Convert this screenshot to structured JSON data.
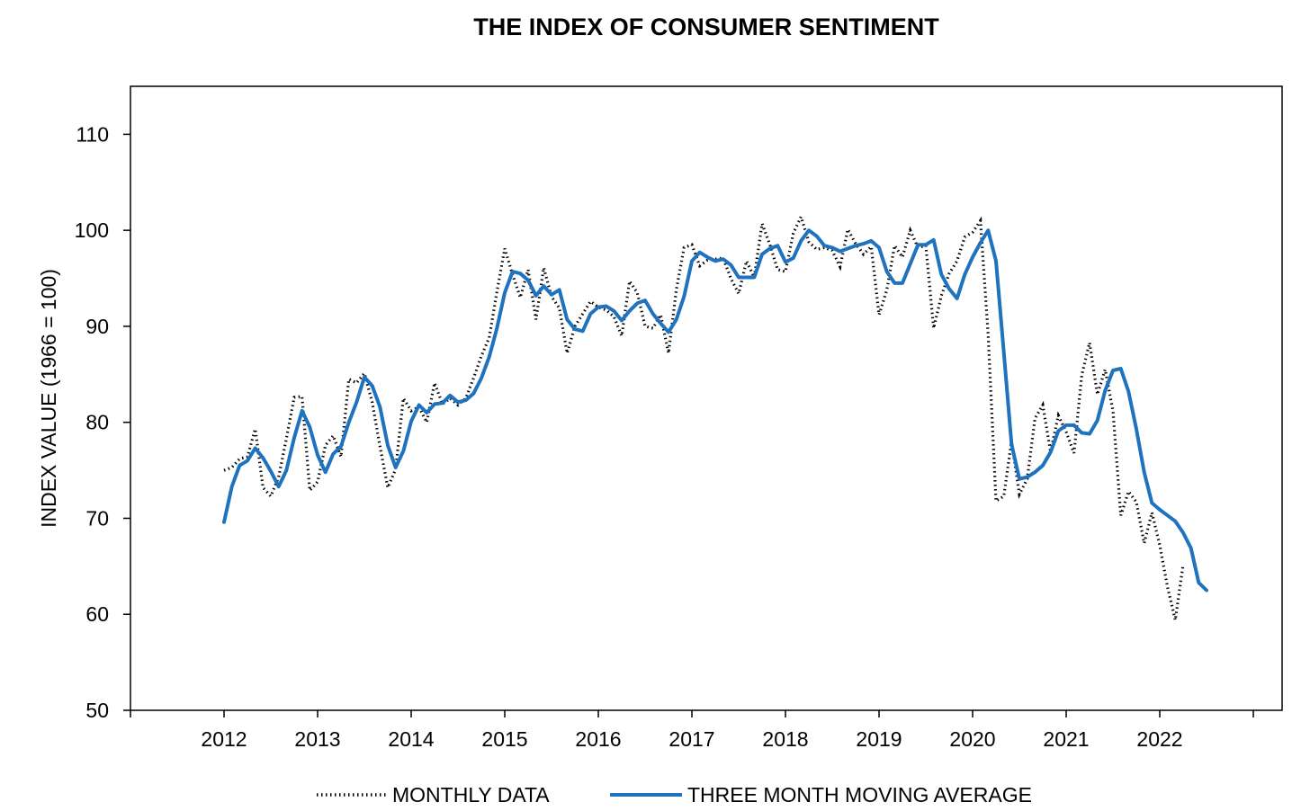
{
  "chart_data": {
    "type": "line",
    "title": "THE INDEX OF CONSUMER SENTIMENT",
    "xlabel": "",
    "ylabel": "INDEX VALUE (1966 = 100)",
    "ylim": [
      50,
      115
    ],
    "yticks": [
      50,
      60,
      70,
      80,
      90,
      100,
      110
    ],
    "xticks": [
      "2012",
      "2013",
      "2014",
      "2015",
      "2016",
      "2017",
      "2018",
      "2019",
      "2020",
      "2021",
      "2022"
    ],
    "x_start": "2012-01",
    "x_end": "2022-04",
    "grid": false,
    "legend_position": "bottom",
    "series": [
      {
        "name": "MONTHLY DATA",
        "style": "dotted",
        "color": "#000000",
        "values": [
          75.0,
          75.3,
          76.2,
          76.4,
          79.3,
          73.2,
          72.3,
          74.3,
          78.3,
          82.6,
          82.7,
          72.9,
          73.8,
          77.6,
          78.6,
          76.4,
          84.5,
          84.1,
          85.1,
          82.1,
          77.5,
          73.2,
          75.1,
          82.5,
          81.2,
          81.6,
          80.0,
          84.1,
          81.9,
          82.5,
          81.8,
          82.5,
          84.6,
          86.9,
          88.8,
          93.6,
          98.1,
          95.4,
          93.0,
          95.9,
          90.7,
          96.1,
          93.1,
          91.9,
          87.2,
          90.0,
          91.3,
          92.6,
          92.0,
          91.7,
          91.0,
          89.0,
          94.7,
          93.5,
          90.0,
          89.8,
          91.2,
          87.2,
          93.8,
          98.2,
          98.5,
          96.3,
          96.9,
          97.0,
          97.1,
          95.0,
          93.4,
          96.8,
          95.1,
          100.7,
          98.5,
          95.9,
          95.7,
          99.7,
          101.4,
          98.8,
          98.0,
          98.2,
          97.9,
          96.2,
          100.1,
          98.6,
          97.5,
          98.3,
          91.2,
          93.8,
          98.4,
          97.2,
          100.0,
          98.2,
          98.4,
          89.8,
          93.2,
          95.5,
          96.8,
          99.3,
          99.8,
          101.0,
          89.1,
          71.8,
          72.3,
          78.1,
          72.5,
          74.1,
          80.4,
          81.8,
          76.9,
          80.7,
          79.0,
          76.8,
          84.9,
          88.3,
          82.9,
          85.5,
          81.2,
          70.3,
          72.8,
          71.7,
          67.4,
          70.6,
          67.2,
          62.8,
          59.4,
          65.2
        ]
      },
      {
        "name": "THREE MONTH MOVING AVERAGE",
        "style": "solid",
        "color": "#1f73be",
        "values": [
          69.6,
          73.3,
          75.5,
          76.0,
          77.3,
          76.3,
          74.9,
          73.3,
          75.0,
          78.4,
          81.2,
          79.5,
          76.6,
          74.8,
          76.7,
          77.5,
          80.0,
          82.1,
          84.7,
          83.8,
          81.6,
          77.6,
          75.3,
          77.0,
          80.1,
          81.8,
          81.0,
          81.9,
          82.0,
          82.8,
          82.1,
          82.3,
          83.0,
          84.6,
          86.8,
          89.8,
          93.5,
          95.7,
          95.5,
          94.8,
          93.2,
          94.2,
          93.3,
          93.8,
          90.7,
          89.7,
          89.5,
          91.3,
          92.0,
          92.1,
          91.6,
          90.6,
          91.6,
          92.4,
          92.7,
          91.3,
          90.3,
          89.4,
          90.7,
          93.1,
          96.8,
          97.7,
          97.2,
          96.8,
          97.0,
          96.4,
          95.1,
          95.1,
          95.1,
          97.5,
          98.1,
          98.4,
          96.7,
          97.1,
          98.9,
          100.0,
          99.4,
          98.4,
          98.2,
          97.8,
          98.1,
          98.4,
          98.6,
          98.9,
          98.2,
          95.7,
          94.5,
          94.5,
          96.5,
          98.5,
          98.5,
          99.0,
          95.4,
          93.9,
          92.9,
          95.4,
          97.2,
          98.7,
          100.0,
          96.8,
          87.3,
          77.7,
          74.1,
          74.3,
          74.8,
          75.5,
          76.9,
          79.1,
          79.7,
          79.7,
          78.9,
          78.8,
          80.2,
          83.3,
          85.4,
          85.6,
          83.2,
          79.3,
          74.8,
          71.6,
          70.9,
          70.3,
          69.7,
          68.5,
          66.9,
          63.3,
          62.5
        ]
      }
    ]
  }
}
